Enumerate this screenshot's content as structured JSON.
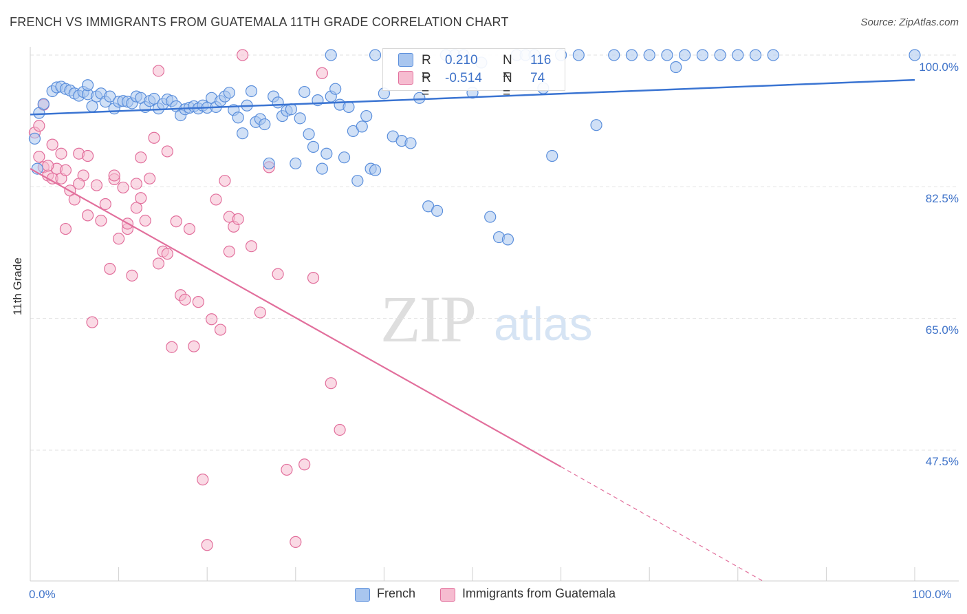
{
  "title": "FRENCH VS IMMIGRANTS FROM GUATEMALA 11TH GRADE CORRELATION CHART",
  "source": "Source: ZipAtlas.com",
  "watermark": {
    "zip": "ZIP",
    "atlas": "atlas"
  },
  "legend_top": {
    "row1": {
      "r_label": "R =",
      "r_value": "0.210",
      "n_label": "N =",
      "n_value": "116"
    },
    "row2": {
      "r_label": "R =",
      "r_value": "-0.514",
      "n_label": "N =",
      "n_value": "74"
    }
  },
  "legend_bottom": {
    "s1": "French",
    "s2": "Immigrants from Guatemala"
  },
  "colors": {
    "blue": "#5b8fdc",
    "blue_fill": "#a9c6ef",
    "pink": "#e26f9c",
    "pink_fill": "#f6bcd0",
    "axis_text": "#3f73c9"
  },
  "chart_data": {
    "type": "scatter",
    "title": "FRENCH VS IMMIGRANTS FROM GUATEMALA 11TH GRADE CORRELATION CHART",
    "xlabel": "",
    "ylabel": "11th Grade",
    "xlim": [
      0,
      100
    ],
    "ylim": [
      32,
      100
    ],
    "x_ticks": [
      "0.0%",
      "100.0%"
    ],
    "y_ticks": [
      "100.0%",
      "82.5%",
      "65.0%",
      "47.5%"
    ],
    "y_tick_values": [
      100,
      82.5,
      65,
      47.5
    ],
    "grid": true,
    "legend_placement": "bottom",
    "series": [
      {
        "name": "French",
        "color": "#5b8fdc",
        "trend": {
          "x": [
            0,
            100
          ],
          "y": [
            92.1,
            96.7
          ]
        },
        "points": [
          [
            0.5,
            88.9
          ],
          [
            1.0,
            92.3
          ],
          [
            1.5,
            93.5
          ],
          [
            2.5,
            95.2
          ],
          [
            3.0,
            95.7
          ],
          [
            3.5,
            95.8
          ],
          [
            4.0,
            95.5
          ],
          [
            4.5,
            95.3
          ],
          [
            5.0,
            94.9
          ],
          [
            5.5,
            94.6
          ],
          [
            6.0,
            95.1
          ],
          [
            6.5,
            94.8
          ],
          [
            7.0,
            93.2
          ],
          [
            7.5,
            94.5
          ],
          [
            8.0,
            94.9
          ],
          [
            8.5,
            93.8
          ],
          [
            9.0,
            94.5
          ],
          [
            9.5,
            92.9
          ],
          [
            10.0,
            93.8
          ],
          [
            10.5,
            93.9
          ],
          [
            11.0,
            93.8
          ],
          [
            11.5,
            93.6
          ],
          [
            12.0,
            94.5
          ],
          [
            12.5,
            94.3
          ],
          [
            13.0,
            93.1
          ],
          [
            13.5,
            93.9
          ],
          [
            14.0,
            94.2
          ],
          [
            14.5,
            92.9
          ],
          [
            15.0,
            93.5
          ],
          [
            15.5,
            94.1
          ],
          [
            16.0,
            93.9
          ],
          [
            16.5,
            93.2
          ],
          [
            17.0,
            92.0
          ],
          [
            17.5,
            92.8
          ],
          [
            18.0,
            93.0
          ],
          [
            18.5,
            93.2
          ],
          [
            19.0,
            92.9
          ],
          [
            19.5,
            93.3
          ],
          [
            20.0,
            93.0
          ],
          [
            20.5,
            94.3
          ],
          [
            21.0,
            93.1
          ],
          [
            21.5,
            93.9
          ],
          [
            22.0,
            94.5
          ],
          [
            22.5,
            95.0
          ],
          [
            23.0,
            92.7
          ],
          [
            23.5,
            91.7
          ],
          [
            24.0,
            89.6
          ],
          [
            24.5,
            93.3
          ],
          [
            25.0,
            95.2
          ],
          [
            25.5,
            91.1
          ],
          [
            26.0,
            91.5
          ],
          [
            26.5,
            90.8
          ],
          [
            27.0,
            85.6
          ],
          [
            27.5,
            94.5
          ],
          [
            28.0,
            93.7
          ],
          [
            28.5,
            91.9
          ],
          [
            29.0,
            92.6
          ],
          [
            29.5,
            92.8
          ],
          [
            30.0,
            85.6
          ],
          [
            30.5,
            91.6
          ],
          [
            31.0,
            95.1
          ],
          [
            31.5,
            89.5
          ],
          [
            32.0,
            87.8
          ],
          [
            32.5,
            94.0
          ],
          [
            33.0,
            84.9
          ],
          [
            33.5,
            86.9
          ],
          [
            34.0,
            94.5
          ],
          [
            34.5,
            95.5
          ],
          [
            35.0,
            93.4
          ],
          [
            35.5,
            86.4
          ],
          [
            36.0,
            93.1
          ],
          [
            36.5,
            89.9
          ],
          [
            37.0,
            83.3
          ],
          [
            37.5,
            90.5
          ],
          [
            38.0,
            91.9
          ],
          [
            38.5,
            84.9
          ],
          [
            39.0,
            84.7
          ],
          [
            40.0,
            94.9
          ],
          [
            41.0,
            89.2
          ],
          [
            42.0,
            88.6
          ],
          [
            43.0,
            88.3
          ],
          [
            44.0,
            94.3
          ],
          [
            45.0,
            79.9
          ],
          [
            46.0,
            79.3
          ],
          [
            47.0,
            100.0
          ],
          [
            48.0,
            100.0
          ],
          [
            49.0,
            100.0
          ],
          [
            50.0,
            95.0
          ],
          [
            51.0,
            99.0
          ],
          [
            52.0,
            78.5
          ],
          [
            53.0,
            75.8
          ],
          [
            54.0,
            75.5
          ],
          [
            55.0,
            100.0
          ],
          [
            56.0,
            100.0
          ],
          [
            57.0,
            100.0
          ],
          [
            58.0,
            95.6
          ],
          [
            59.0,
            86.6
          ],
          [
            60.0,
            100.0
          ],
          [
            62.0,
            100.0
          ],
          [
            64.0,
            90.7
          ],
          [
            66.0,
            100.0
          ],
          [
            68.0,
            100.0
          ],
          [
            70.0,
            100.0
          ],
          [
            72.0,
            100.0
          ],
          [
            73.0,
            98.4
          ],
          [
            74.0,
            100.0
          ],
          [
            76.0,
            100.0
          ],
          [
            78.0,
            100.0
          ],
          [
            80.0,
            100.0
          ],
          [
            82.0,
            100.0
          ],
          [
            84.0,
            100.0
          ],
          [
            100.0,
            100.0
          ],
          [
            0.8,
            84.9
          ],
          [
            6.5,
            96.0
          ],
          [
            34.0,
            100.0
          ],
          [
            39.0,
            100.0
          ]
        ]
      },
      {
        "name": "Immigrants from Guatemala",
        "color": "#e26f9c",
        "trend": {
          "x": [
            0,
            60
          ],
          "y": [
            84.9,
            45.3
          ],
          "dash_x": [
            60,
            83
          ],
          "dash_y": [
            45.3,
            30.0
          ]
        },
        "points": [
          [
            0.5,
            89.7
          ],
          [
            1.0,
            86.5
          ],
          [
            1.5,
            85.1
          ],
          [
            2.0,
            84.0
          ],
          [
            2.5,
            83.6
          ],
          [
            3.0,
            84.9
          ],
          [
            3.5,
            86.9
          ],
          [
            4.0,
            76.9
          ],
          [
            4.5,
            82.0
          ],
          [
            5.0,
            80.8
          ],
          [
            5.5,
            86.9
          ],
          [
            6.0,
            84.0
          ],
          [
            6.5,
            78.7
          ],
          [
            7.0,
            64.5
          ],
          [
            7.5,
            82.7
          ],
          [
            8.0,
            78.0
          ],
          [
            8.5,
            80.2
          ],
          [
            9.0,
            71.6
          ],
          [
            9.5,
            83.5
          ],
          [
            10.0,
            75.6
          ],
          [
            10.5,
            82.4
          ],
          [
            11.0,
            76.9
          ],
          [
            11.5,
            70.7
          ],
          [
            12.0,
            79.7
          ],
          [
            12.5,
            86.4
          ],
          [
            13.0,
            78.0
          ],
          [
            13.5,
            83.6
          ],
          [
            14.0,
            89.0
          ],
          [
            14.5,
            72.3
          ],
          [
            15.0,
            73.9
          ],
          [
            15.5,
            73.6
          ],
          [
            16.0,
            61.2
          ],
          [
            16.5,
            77.9
          ],
          [
            17.0,
            68.1
          ],
          [
            17.5,
            67.5
          ],
          [
            18.0,
            76.9
          ],
          [
            18.5,
            61.3
          ],
          [
            19.0,
            67.2
          ],
          [
            19.5,
            43.6
          ],
          [
            20.0,
            34.9
          ],
          [
            20.5,
            64.9
          ],
          [
            21.0,
            80.8
          ],
          [
            21.5,
            63.5
          ],
          [
            22.0,
            83.3
          ],
          [
            22.5,
            78.5
          ],
          [
            23.0,
            77.2
          ],
          [
            23.5,
            78.2
          ],
          [
            24.0,
            100.0
          ],
          [
            25.0,
            74.6
          ],
          [
            26.0,
            65.8
          ],
          [
            27.0,
            85.1
          ],
          [
            28.0,
            70.9
          ],
          [
            29.0,
            44.9
          ],
          [
            30.0,
            35.3
          ],
          [
            31.0,
            45.6
          ],
          [
            32.0,
            70.4
          ],
          [
            33.0,
            97.6
          ],
          [
            34.0,
            56.4
          ],
          [
            35.0,
            50.2
          ],
          [
            2.0,
            85.3
          ],
          [
            3.5,
            83.6
          ],
          [
            5.5,
            82.9
          ],
          [
            6.5,
            86.6
          ],
          [
            9.5,
            84.0
          ],
          [
            12.5,
            81.0
          ],
          [
            14.5,
            97.9
          ],
          [
            15.5,
            87.2
          ],
          [
            22.5,
            73.9
          ],
          [
            1.0,
            90.6
          ],
          [
            1.5,
            93.4
          ],
          [
            2.5,
            88.1
          ],
          [
            4.0,
            84.7
          ],
          [
            11.0,
            77.6
          ],
          [
            12.0,
            82.9
          ]
        ]
      }
    ]
  }
}
